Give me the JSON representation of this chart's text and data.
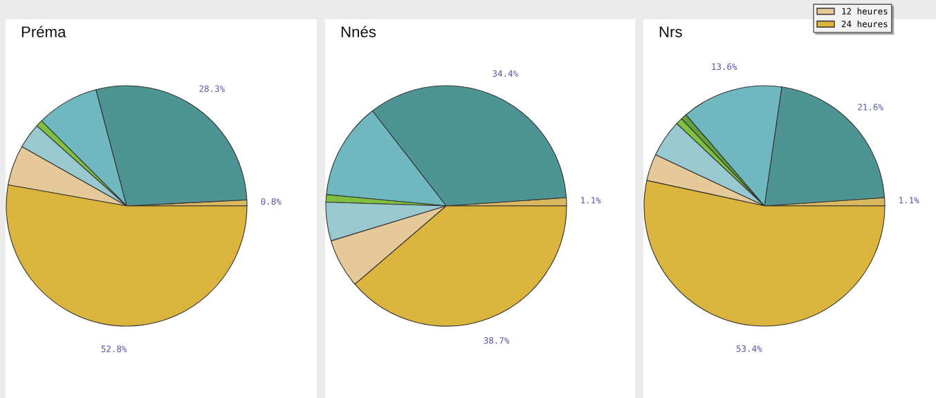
{
  "chart_data": [
    {
      "type": "pie",
      "title": "Préma",
      "legend": "top right",
      "categories": [
        null,
        null,
        null,
        null,
        null,
        "12 heures",
        "24 heures"
      ],
      "values": [
        0.8,
        28.3,
        8.4,
        0.9,
        3.4,
        5.4,
        52.8
      ],
      "colors": [
        "#d9b860",
        "#4f9494",
        "#6fb8c0",
        "#80c040",
        "#98c8d0",
        "#e6c998",
        "#dbb43e"
      ],
      "value_labels": [
        "0.8%",
        "28.3%",
        null,
        null,
        null,
        null,
        "52.8%"
      ]
    },
    {
      "type": "pie",
      "title": "Nnés",
      "categories": [
        null,
        null,
        null,
        null,
        null,
        null,
        null
      ],
      "values": [
        1.1,
        34.4,
        13.0,
        1.0,
        5.2,
        6.6,
        38.7
      ],
      "colors": [
        "#d9b860",
        "#4f9494",
        "#6fb8c0",
        "#80c040",
        "#98c8d0",
        "#e6c998",
        "#dbb43e"
      ],
      "value_labels": [
        "1.1%",
        "34.4%",
        null,
        null,
        null,
        null,
        "38.7%"
      ]
    },
    {
      "type": "pie",
      "title": "Nrs",
      "categories": [
        null,
        null,
        null,
        null,
        null,
        null,
        null,
        null
      ],
      "values": [
        1.1,
        21.6,
        13.6,
        0.8,
        0.9,
        5.0,
        3.6,
        53.4
      ],
      "colors": [
        "#d9b860",
        "#4f9494",
        "#6fb8c0",
        "#60a040",
        "#80c040",
        "#98c8d0",
        "#e6c998",
        "#dbb43e"
      ],
      "value_labels": [
        "1.1%",
        "21.6%",
        "13.6%",
        null,
        null,
        null,
        null,
        "53.4%"
      ]
    }
  ]
}
